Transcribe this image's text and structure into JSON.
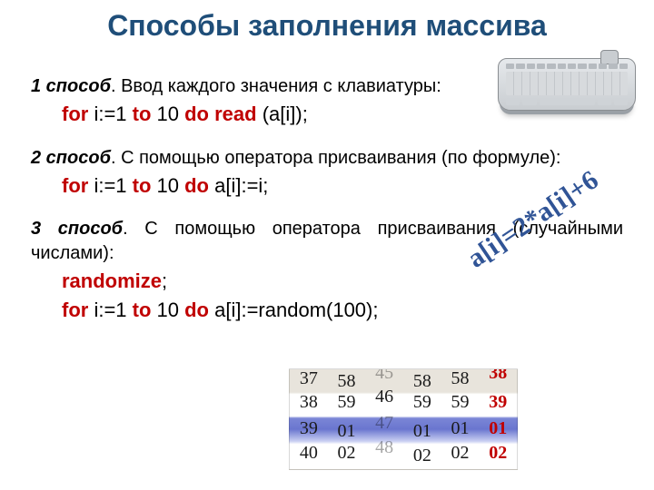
{
  "title": "Способы заполнения массива",
  "title_color": "#1f4e79",
  "methods": {
    "m1": {
      "heading": "1 способ",
      "desc": ". Ввод каждого значения с клавиатуры:",
      "code": {
        "for": "for",
        "v1": " i:=1 ",
        "to": "to",
        "v2": " 10 ",
        "do": "do",
        "fn": " read ",
        "arg": "(a[i]);"
      }
    },
    "m2": {
      "heading": "2 способ",
      "desc": ". С помощью оператора присваивания (по формуле):",
      "code": {
        "for": "for",
        "v1": " i:=1 ",
        "to": "to",
        "v2": " 10 ",
        "do": "do",
        "tail": " a[i]:=i;"
      }
    },
    "m3": {
      "heading": "3 способ",
      "desc": ". С помощью оператора присваивания (случайными числами):",
      "code1": {
        "rnd": "randomize",
        "semi": ";"
      },
      "code2": {
        "for": "for",
        "v1": " i:=1 ",
        "to": "to",
        "v2": " 10 ",
        "do": "do",
        "tail": " a[i]:=random(100);"
      }
    }
  },
  "formula": "a[i]=2*a[i]+6",
  "formula_color": "#305496",
  "numtable": {
    "rows": [
      [
        {
          "t": "37",
          "cls": "c-dark"
        },
        {
          "t": "58",
          "cls": "c-dark offset-down"
        },
        {
          "t": "45",
          "cls": "c-faded offset-up"
        },
        {
          "t": "58",
          "cls": "c-dark offset-down"
        },
        {
          "t": "58",
          "cls": "c-dark"
        },
        {
          "t": "38",
          "cls": "c-red offset-up"
        }
      ],
      [
        {
          "t": "38",
          "cls": "c-dark"
        },
        {
          "t": "59",
          "cls": "c-dark"
        },
        {
          "t": "46",
          "cls": "c-dark offset-up"
        },
        {
          "t": "59",
          "cls": "c-dark"
        },
        {
          "t": "59",
          "cls": "c-dark"
        },
        {
          "t": "39",
          "cls": "c-red"
        }
      ],
      [
        {
          "t": "39",
          "cls": "c-dark"
        },
        {
          "t": "01",
          "cls": "c-dark offset-down"
        },
        {
          "t": "47",
          "cls": "c-faded offset-up"
        },
        {
          "t": "01",
          "cls": "c-dark offset-down"
        },
        {
          "t": "01",
          "cls": "c-dark"
        },
        {
          "t": "01",
          "cls": "c-red"
        }
      ],
      [
        {
          "t": "40",
          "cls": "c-dark"
        },
        {
          "t": "02",
          "cls": "c-dark"
        },
        {
          "t": "48",
          "cls": "c-faded offset-up"
        },
        {
          "t": "02",
          "cls": "c-dark offset-down"
        },
        {
          "t": "02",
          "cls": "c-dark"
        },
        {
          "t": "02",
          "cls": "c-red"
        }
      ]
    ]
  }
}
